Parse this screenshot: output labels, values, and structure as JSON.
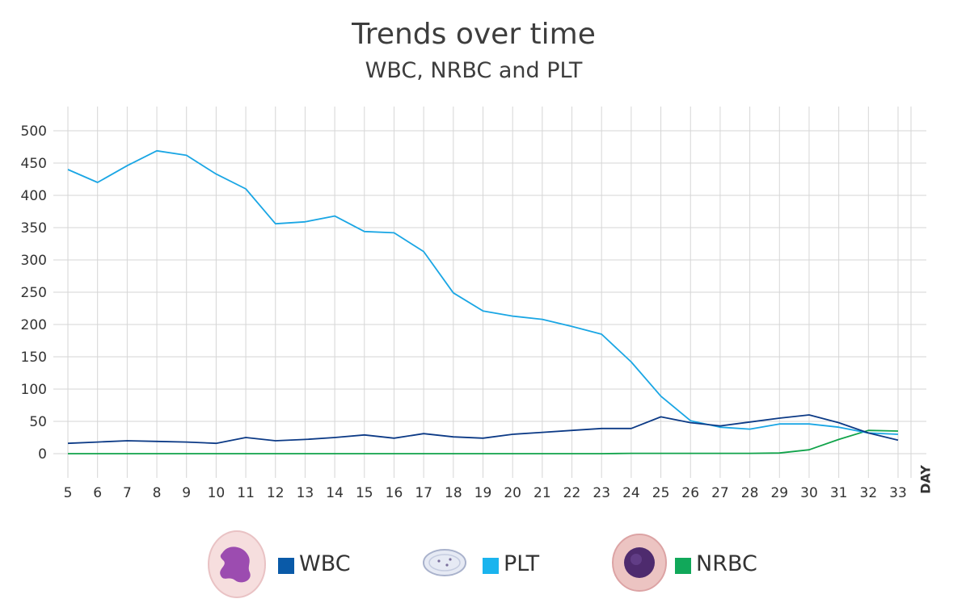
{
  "title": "Trends over time",
  "subtitle": "WBC, NRBC and PLT",
  "chart_data": {
    "type": "line",
    "title": "Trends over time",
    "subtitle": "WBC, NRBC and PLT",
    "xlabel": "DAY",
    "ylabel": "",
    "x": [
      5,
      6,
      7,
      8,
      9,
      10,
      11,
      12,
      13,
      14,
      15,
      16,
      17,
      18,
      19,
      20,
      21,
      22,
      23,
      24,
      25,
      26,
      27,
      28,
      29,
      30,
      31,
      32,
      33
    ],
    "ylim": [
      0,
      500
    ],
    "yticks": [
      "500",
      "450",
      "400",
      "350",
      "300",
      "250",
      "200",
      "150",
      "100",
      "50",
      "0"
    ],
    "grid": true,
    "legend_position": "bottom",
    "series": [
      {
        "name": "PLT",
        "color": "#1aa6e4",
        "values": [
          440,
          420,
          446,
          469,
          462,
          433,
          410,
          356,
          359,
          368,
          344,
          342,
          313,
          249,
          221,
          213,
          208,
          197,
          185,
          142,
          89,
          51,
          41,
          38,
          46,
          46,
          41,
          32,
          30
        ]
      },
      {
        "name": "WBC",
        "color": "#0c3a86",
        "values": [
          16,
          18,
          20,
          19,
          18,
          16,
          25,
          20,
          22,
          25,
          29,
          24,
          31,
          26,
          24,
          30,
          33,
          36,
          39,
          39,
          57,
          48,
          43,
          49,
          55,
          60,
          48,
          32,
          21
        ]
      },
      {
        "name": "NRBC",
        "color": "#10a34a",
        "values": [
          0,
          0,
          0,
          0,
          0,
          0,
          0,
          0,
          0,
          0,
          0,
          0,
          0,
          0,
          0,
          0,
          0,
          0,
          0,
          0.5,
          0.5,
          0.5,
          0.5,
          0.5,
          1,
          6,
          22,
          36,
          35
        ]
      }
    ]
  },
  "legend": {
    "items": [
      {
        "label": "WBC",
        "color": "#0a5aa8",
        "icon": "neutrophil-cell-icon"
      },
      {
        "label": "PLT",
        "color": "#1ab4ee",
        "icon": "platelet-cell-icon"
      },
      {
        "label": "NRBC",
        "color": "#11a85a",
        "icon": "nucleated-rbc-cell-icon"
      }
    ]
  }
}
